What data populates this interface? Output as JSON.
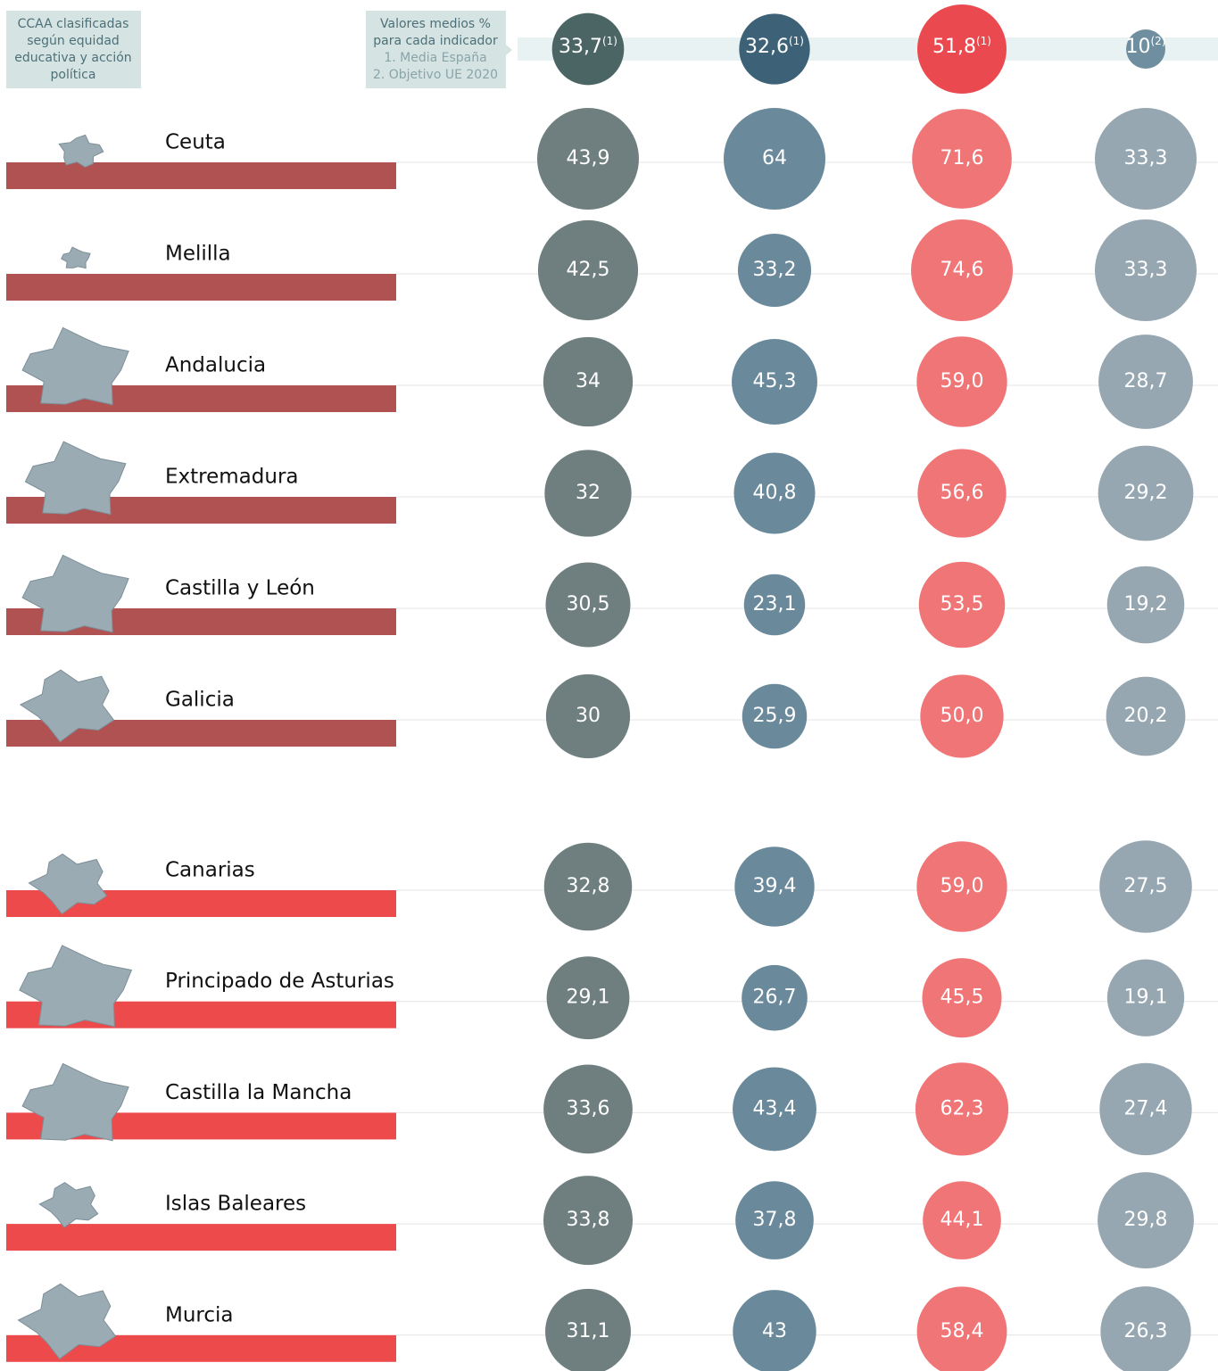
{
  "header": {
    "left_box": [
      "CCAA clasificadas",
      "según equidad",
      "educativa y acción",
      "política"
    ],
    "mid_box": [
      "Valores medios %",
      "para cada indicador",
      "1. Media España",
      "2. Objetivo UE 2020"
    ],
    "averages": [
      {
        "value": 33.7,
        "label": "33,7",
        "note": "(1)"
      },
      {
        "value": 32.6,
        "label": "32,6",
        "note": "(1)"
      },
      {
        "value": 51.8,
        "label": "51,8",
        "note": "(1)"
      },
      {
        "value": 10,
        "label": "10",
        "note": "(2)"
      }
    ],
    "header_colors": [
      "#4b6464",
      "#3d6277",
      "#ea4a4f",
      "#6f8ea0"
    ]
  },
  "column_colors": [
    "#6f7f7f",
    "#6a8a9c",
    "#f07577",
    "#96a7b1"
  ],
  "groups": [
    {
      "bar_color": "#b05252",
      "rows": [
        {
          "name": "Ceuta",
          "values": [
            43.9,
            64,
            71.6,
            33.3
          ],
          "value_labels": [
            "43,9",
            "64",
            "71,6",
            "33,3"
          ]
        },
        {
          "name": "Melilla",
          "values": [
            42.5,
            33.2,
            74.6,
            33.3
          ],
          "value_labels": [
            "42,5",
            "33,2",
            "74,6",
            "33,3"
          ]
        },
        {
          "name": "Andalucia",
          "values": [
            34,
            45.3,
            59.0,
            28.7
          ],
          "value_labels": [
            "34",
            "45,3",
            "59,0",
            "28,7"
          ]
        },
        {
          "name": "Extremadura",
          "values": [
            32,
            40.8,
            56.6,
            29.2
          ],
          "value_labels": [
            "32",
            "40,8",
            "56,6",
            "29,2"
          ]
        },
        {
          "name": "Castilla y León",
          "values": [
            30.5,
            23.1,
            53.5,
            19.2
          ],
          "value_labels": [
            "30,5",
            "23,1",
            "53,5",
            "19,2"
          ]
        },
        {
          "name": "Galicia",
          "values": [
            30,
            25.9,
            50.0,
            20.2
          ],
          "value_labels": [
            "30",
            "25,9",
            "50,0",
            "20,2"
          ]
        }
      ]
    },
    {
      "bar_color": "#ed4a4c",
      "rows": [
        {
          "name": "Canarias",
          "values": [
            32.8,
            39.4,
            59.0,
            27.5
          ],
          "value_labels": [
            "32,8",
            "39,4",
            "59,0",
            "27,5"
          ]
        },
        {
          "name": "Principado de Asturias",
          "values": [
            29.1,
            26.7,
            45.5,
            19.1
          ],
          "value_labels": [
            "29,1",
            "26,7",
            "45,5",
            "19,1"
          ]
        },
        {
          "name": "Castilla la Mancha",
          "values": [
            33.6,
            43.4,
            62.3,
            27.4
          ],
          "value_labels": [
            "33,6",
            "43,4",
            "62,3",
            "27,4"
          ]
        },
        {
          "name": "Islas Baleares",
          "values": [
            33.8,
            37.8,
            44.1,
            29.8
          ],
          "value_labels": [
            "33,8",
            "37,8",
            "44,1",
            "29,8"
          ]
        },
        {
          "name": "Murcia",
          "values": [
            31.1,
            43,
            58.4,
            26.3
          ],
          "value_labels": [
            "31,1",
            "43",
            "58,4",
            "26,3"
          ]
        }
      ]
    }
  ]
}
